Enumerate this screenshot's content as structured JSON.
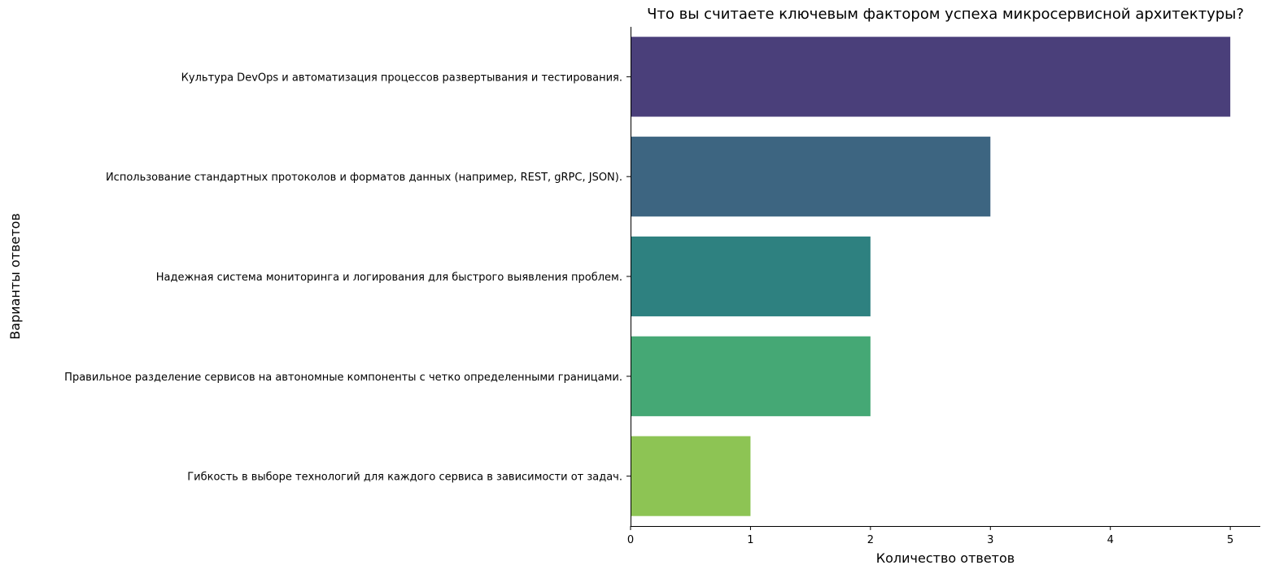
{
  "chart_data": {
    "type": "bar",
    "orientation": "horizontal",
    "title": "Что вы считаете ключевым фактором успеха микросервисной архитектуры?",
    "xlabel": "Количество ответов",
    "ylabel": "Варианты ответов",
    "categories": [
      "Культура DevOps и автоматизация процессов развертывания и тестирования.",
      "Использование стандартных протоколов и форматов данных (например, REST, gRPC, JSON).",
      "Надежная система мониторинга и логирования для быстрого выявления проблем.",
      "Правильное разделение сервисов на автономные компоненты с четко определенными границами.",
      "Гибкость в выборе технологий для каждого сервиса в зависимости от задач."
    ],
    "values": [
      5,
      3,
      2,
      2,
      1
    ],
    "colors": [
      "#4a3f7a",
      "#3d6581",
      "#2e8180",
      "#45a875",
      "#8dc454"
    ],
    "xlim": [
      0,
      5.25
    ],
    "xticks": [
      0,
      1,
      2,
      3,
      4,
      5
    ],
    "grid": false
  }
}
